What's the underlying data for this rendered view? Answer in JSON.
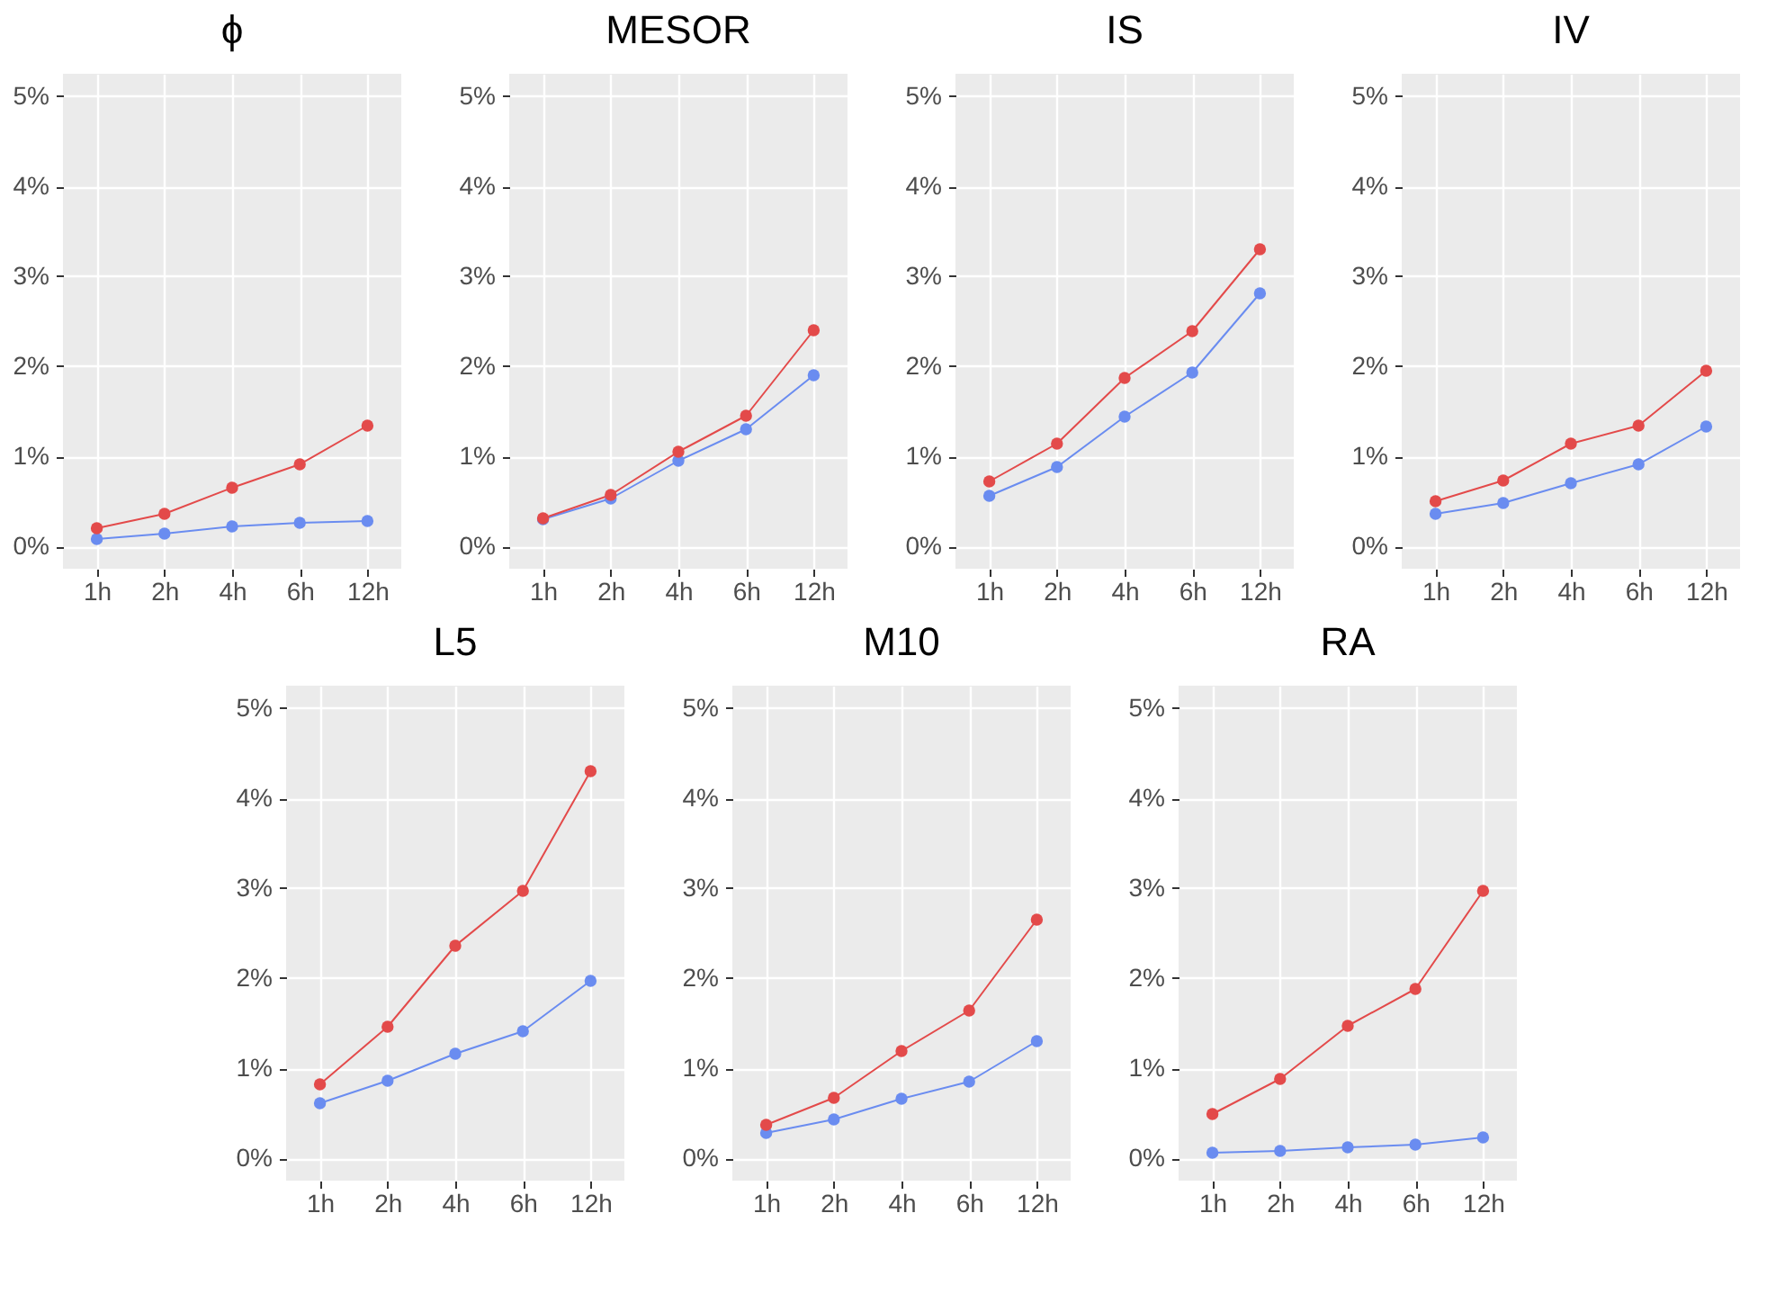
{
  "chart_data": [
    {
      "type": "line",
      "title": "ϕ",
      "categories": [
        "1h",
        "2h",
        "4h",
        "6h",
        "12h"
      ],
      "series": [
        {
          "color": "#e34a4a",
          "values": [
            0.2,
            0.36,
            0.65,
            0.91,
            1.34
          ]
        },
        {
          "color": "#6a8cf0",
          "values": [
            0.08,
            0.14,
            0.22,
            0.26,
            0.28
          ]
        }
      ],
      "ylim": [
        -0.25,
        5.25
      ],
      "yticks": [
        {
          "value": 0,
          "label": "0%"
        },
        {
          "value": 1,
          "label": "1%"
        },
        {
          "value": 2,
          "label": "2%"
        },
        {
          "value": 3,
          "label": "3%"
        },
        {
          "value": 4,
          "label": "4%"
        },
        {
          "value": 5,
          "label": "5%"
        }
      ],
      "grid": true,
      "marker": "circle",
      "line_style": "solid"
    },
    {
      "type": "line",
      "title": "MESOR",
      "categories": [
        "1h",
        "2h",
        "4h",
        "6h",
        "12h"
      ],
      "series": [
        {
          "color": "#e34a4a",
          "values": [
            0.31,
            0.57,
            1.05,
            1.45,
            2.4
          ]
        },
        {
          "color": "#6a8cf0",
          "values": [
            0.3,
            0.53,
            0.95,
            1.3,
            1.9
          ]
        }
      ],
      "ylim": [
        -0.25,
        5.25
      ],
      "yticks": [
        {
          "value": 0,
          "label": "0%"
        },
        {
          "value": 1,
          "label": "1%"
        },
        {
          "value": 2,
          "label": "2%"
        },
        {
          "value": 3,
          "label": "3%"
        },
        {
          "value": 4,
          "label": "4%"
        },
        {
          "value": 5,
          "label": "5%"
        }
      ],
      "grid": true,
      "marker": "circle",
      "line_style": "solid"
    },
    {
      "type": "line",
      "title": "IS",
      "categories": [
        "1h",
        "2h",
        "4h",
        "6h",
        "12h"
      ],
      "series": [
        {
          "color": "#e34a4a",
          "values": [
            0.72,
            1.14,
            1.87,
            2.39,
            3.3
          ]
        },
        {
          "color": "#6a8cf0",
          "values": [
            0.56,
            0.88,
            1.44,
            1.93,
            2.81
          ]
        }
      ],
      "ylim": [
        -0.25,
        5.25
      ],
      "yticks": [
        {
          "value": 0,
          "label": "0%"
        },
        {
          "value": 1,
          "label": "1%"
        },
        {
          "value": 2,
          "label": "2%"
        },
        {
          "value": 3,
          "label": "3%"
        },
        {
          "value": 4,
          "label": "4%"
        },
        {
          "value": 5,
          "label": "5%"
        }
      ],
      "grid": true,
      "marker": "circle",
      "line_style": "solid"
    },
    {
      "type": "line",
      "title": "IV",
      "categories": [
        "1h",
        "2h",
        "4h",
        "6h",
        "12h"
      ],
      "series": [
        {
          "color": "#e34a4a",
          "values": [
            0.5,
            0.73,
            1.14,
            1.34,
            1.95
          ]
        },
        {
          "color": "#6a8cf0",
          "values": [
            0.36,
            0.48,
            0.7,
            0.91,
            1.33
          ]
        }
      ],
      "ylim": [
        -0.25,
        5.25
      ],
      "yticks": [
        {
          "value": 0,
          "label": "0%"
        },
        {
          "value": 1,
          "label": "1%"
        },
        {
          "value": 2,
          "label": "2%"
        },
        {
          "value": 3,
          "label": "3%"
        },
        {
          "value": 4,
          "label": "4%"
        },
        {
          "value": 5,
          "label": "5%"
        }
      ],
      "grid": true,
      "marker": "circle",
      "line_style": "solid"
    },
    {
      "type": "line",
      "title": "L5",
      "categories": [
        "1h",
        "2h",
        "4h",
        "6h",
        "12h"
      ],
      "series": [
        {
          "color": "#e34a4a",
          "values": [
            0.82,
            1.46,
            2.36,
            2.97,
            4.3
          ]
        },
        {
          "color": "#6a8cf0",
          "values": [
            0.61,
            0.86,
            1.16,
            1.41,
            1.97
          ]
        }
      ],
      "ylim": [
        -0.25,
        5.25
      ],
      "yticks": [
        {
          "value": 0,
          "label": "0%"
        },
        {
          "value": 1,
          "label": "1%"
        },
        {
          "value": 2,
          "label": "2%"
        },
        {
          "value": 3,
          "label": "3%"
        },
        {
          "value": 4,
          "label": "4%"
        },
        {
          "value": 5,
          "label": "5%"
        }
      ],
      "grid": true,
      "marker": "circle",
      "line_style": "solid"
    },
    {
      "type": "line",
      "title": "M10",
      "categories": [
        "1h",
        "2h",
        "4h",
        "6h",
        "12h"
      ],
      "series": [
        {
          "color": "#e34a4a",
          "values": [
            0.37,
            0.67,
            1.19,
            1.64,
            2.65
          ]
        },
        {
          "color": "#6a8cf0",
          "values": [
            0.28,
            0.43,
            0.66,
            0.85,
            1.3
          ]
        }
      ],
      "ylim": [
        -0.25,
        5.25
      ],
      "yticks": [
        {
          "value": 0,
          "label": "0%"
        },
        {
          "value": 1,
          "label": "1%"
        },
        {
          "value": 2,
          "label": "2%"
        },
        {
          "value": 3,
          "label": "3%"
        },
        {
          "value": 4,
          "label": "4%"
        },
        {
          "value": 5,
          "label": "5%"
        }
      ],
      "grid": true,
      "marker": "circle",
      "line_style": "solid"
    },
    {
      "type": "line",
      "title": "RA",
      "categories": [
        "1h",
        "2h",
        "4h",
        "6h",
        "12h"
      ],
      "series": [
        {
          "color": "#e34a4a",
          "values": [
            0.49,
            0.88,
            1.47,
            1.88,
            2.97
          ]
        },
        {
          "color": "#6a8cf0",
          "values": [
            0.06,
            0.08,
            0.12,
            0.15,
            0.23
          ]
        }
      ],
      "ylim": [
        -0.25,
        5.25
      ],
      "yticks": [
        {
          "value": 0,
          "label": "0%"
        },
        {
          "value": 1,
          "label": "1%"
        },
        {
          "value": 2,
          "label": "2%"
        },
        {
          "value": 3,
          "label": "3%"
        },
        {
          "value": 4,
          "label": "4%"
        },
        {
          "value": 5,
          "label": "5%"
        }
      ],
      "grid": true,
      "marker": "circle",
      "line_style": "solid"
    }
  ]
}
